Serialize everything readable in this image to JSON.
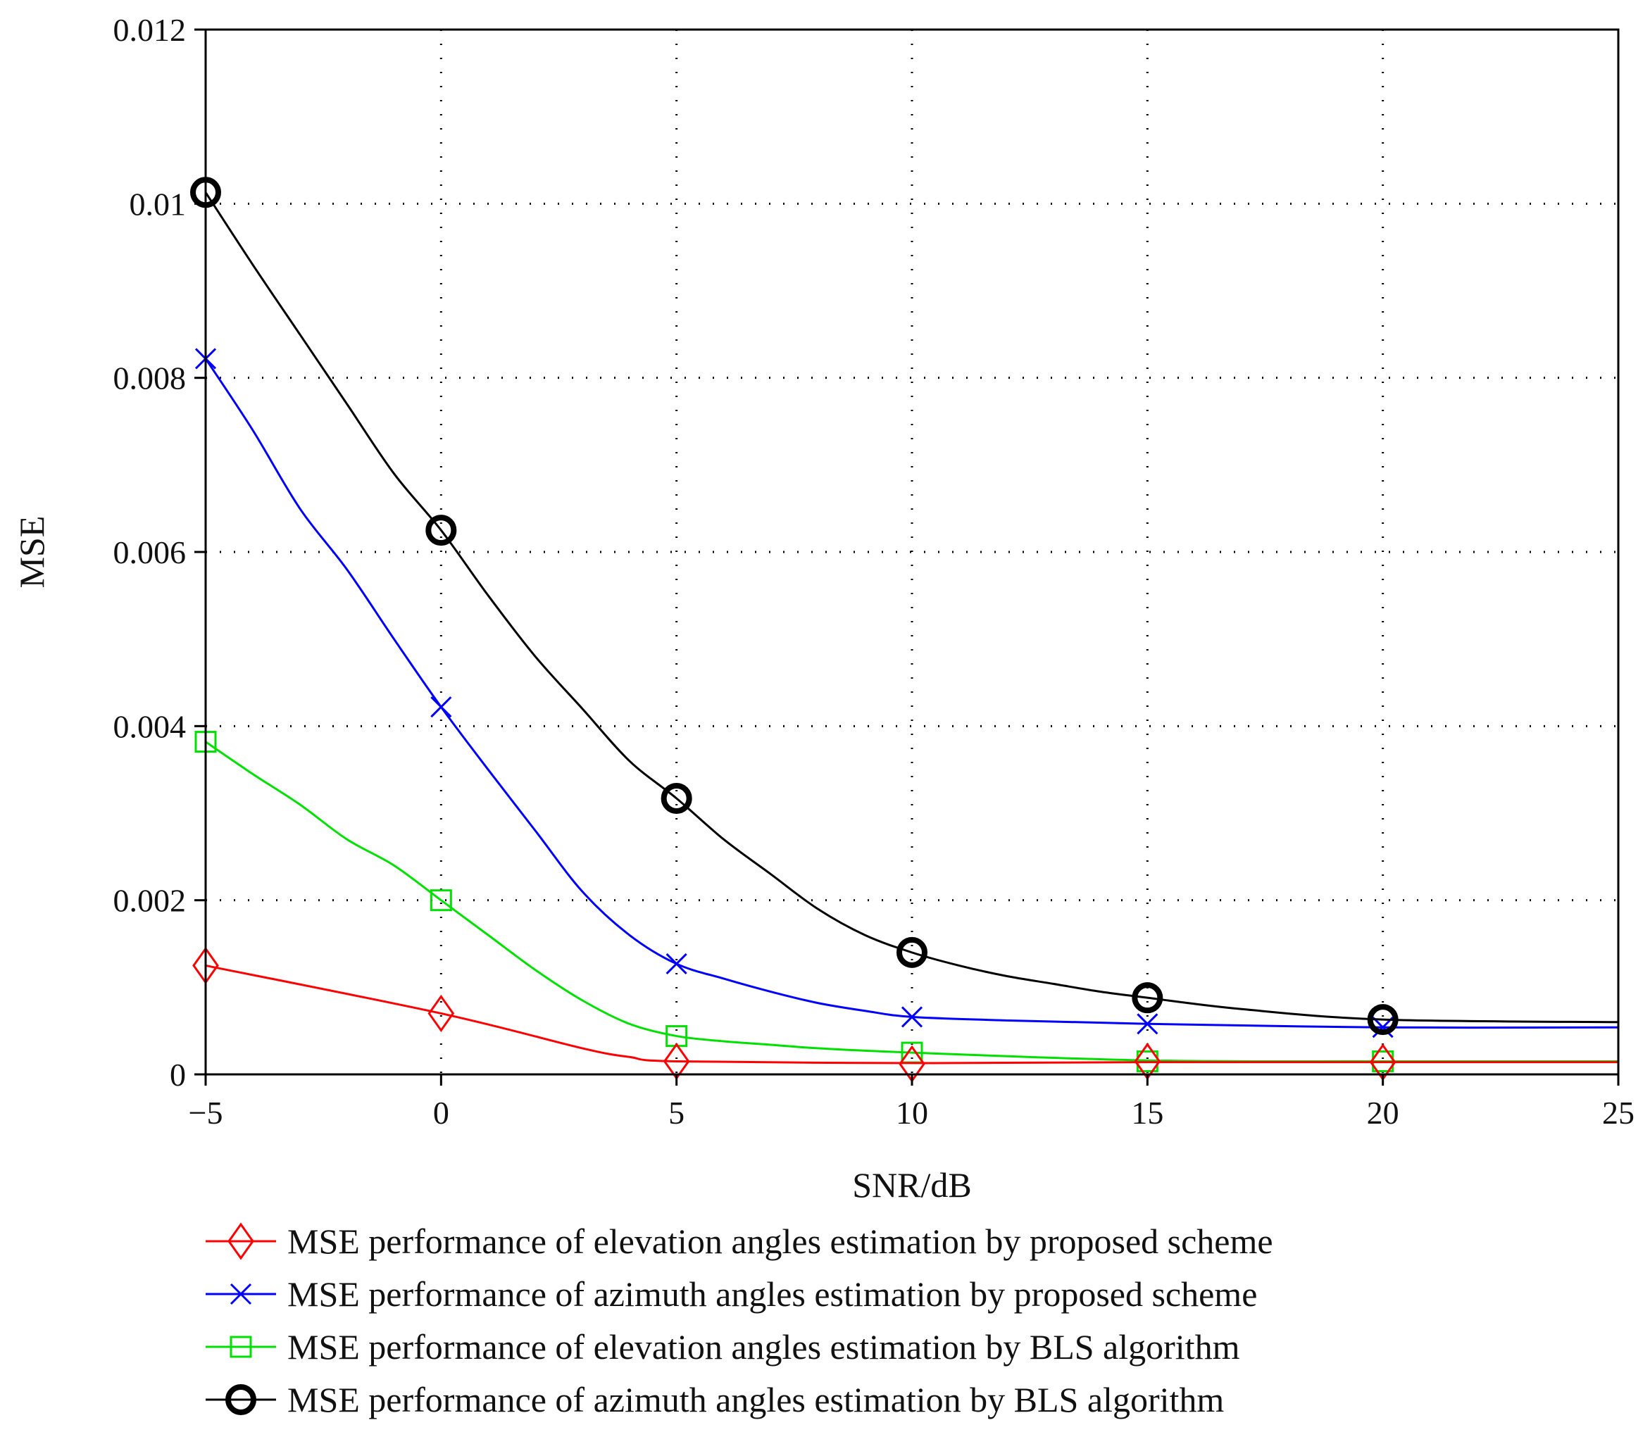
{
  "chart_data": {
    "type": "line",
    "title": "",
    "xlabel": "SNR/dB",
    "ylabel": "MSE",
    "xlim": [
      -5,
      25
    ],
    "ylim": [
      0,
      0.012
    ],
    "xticks": [
      -5,
      0,
      5,
      10,
      15,
      20,
      25
    ],
    "xtick_labels": [
      "−5",
      "0",
      "5",
      "10",
      "15",
      "20",
      "25"
    ],
    "yticks": [
      0,
      0.002,
      0.004,
      0.006,
      0.008,
      0.01,
      0.012
    ],
    "ytick_labels": [
      "0",
      "0.002",
      "0.004",
      "0.006",
      "0.008",
      "0.01",
      "0.012"
    ],
    "grid": true,
    "legend_position": "below",
    "series": [
      {
        "name": "MSE performance of elevation angles estimation by proposed scheme",
        "color": "#ff0000",
        "marker": "diamond",
        "marker_x": [
          -5,
          0,
          5,
          10,
          15,
          20
        ],
        "marker_y": [
          0.00125,
          0.0007,
          0.00015,
          0.00012,
          0.00015,
          0.00014
        ],
        "curve_x": [
          -5,
          0,
          3,
          4,
          5,
          10,
          15,
          20,
          25
        ],
        "curve_y": [
          0.00125,
          0.0007,
          0.0003,
          0.0002,
          0.00015,
          0.00013,
          0.00014,
          0.00014,
          0.00014
        ]
      },
      {
        "name": "MSE performance of azimuth angles estimation by proposed scheme",
        "color": "#0000ff",
        "marker": "x",
        "marker_x": [
          -5,
          0,
          5,
          10,
          15,
          20
        ],
        "marker_y": [
          0.00822,
          0.00422,
          0.00127,
          0.00066,
          0.00058,
          0.00054
        ],
        "curve_x": [
          -5,
          -4,
          -3,
          -2,
          -1,
          0,
          1,
          2,
          3,
          4,
          5,
          6,
          7,
          8,
          9,
          10,
          12,
          15,
          20,
          25
        ],
        "curve_y": [
          0.00822,
          0.0074,
          0.0065,
          0.0058,
          0.005,
          0.00422,
          0.0035,
          0.0028,
          0.0021,
          0.0016,
          0.00127,
          0.0011,
          0.00095,
          0.00082,
          0.00073,
          0.00066,
          0.00062,
          0.00058,
          0.00054,
          0.00054
        ]
      },
      {
        "name": "MSE performance of elevation angles estimation by BLS algorithm",
        "color": "#00e000",
        "marker": "square",
        "marker_x": [
          -5,
          0,
          5,
          10,
          15,
          20
        ],
        "marker_y": [
          0.00382,
          0.002,
          0.00044,
          0.00025,
          0.00015,
          0.00015
        ],
        "curve_x": [
          -5,
          -4,
          -3,
          -2,
          -1,
          0,
          1,
          2,
          3,
          4,
          5,
          6,
          7,
          8,
          10,
          15,
          20,
          25
        ],
        "curve_y": [
          0.00382,
          0.00345,
          0.0031,
          0.0027,
          0.0024,
          0.002,
          0.0016,
          0.0012,
          0.00085,
          0.00058,
          0.00044,
          0.00038,
          0.00034,
          0.0003,
          0.00025,
          0.00016,
          0.00015,
          0.00015
        ]
      },
      {
        "name": "MSE performance of azimuth angles estimation by BLS algorithm",
        "color": "#000000",
        "marker": "circle",
        "marker_x": [
          -5,
          0,
          5,
          10,
          15,
          20
        ],
        "marker_y": [
          0.01013,
          0.00625,
          0.00317,
          0.0014,
          0.00088,
          0.00063
        ],
        "curve_x": [
          -5,
          -4,
          -3,
          -2,
          -1,
          0,
          1,
          2,
          3,
          4,
          5,
          6,
          7,
          8,
          9,
          10,
          11,
          12,
          13,
          14,
          15,
          17,
          20,
          25
        ],
        "curve_y": [
          0.01013,
          0.0093,
          0.0085,
          0.0077,
          0.0069,
          0.00625,
          0.0055,
          0.0048,
          0.0042,
          0.0036,
          0.00317,
          0.0027,
          0.0023,
          0.0019,
          0.0016,
          0.0014,
          0.00125,
          0.00113,
          0.00104,
          0.00095,
          0.00088,
          0.00075,
          0.00063,
          0.0006
        ]
      }
    ]
  }
}
